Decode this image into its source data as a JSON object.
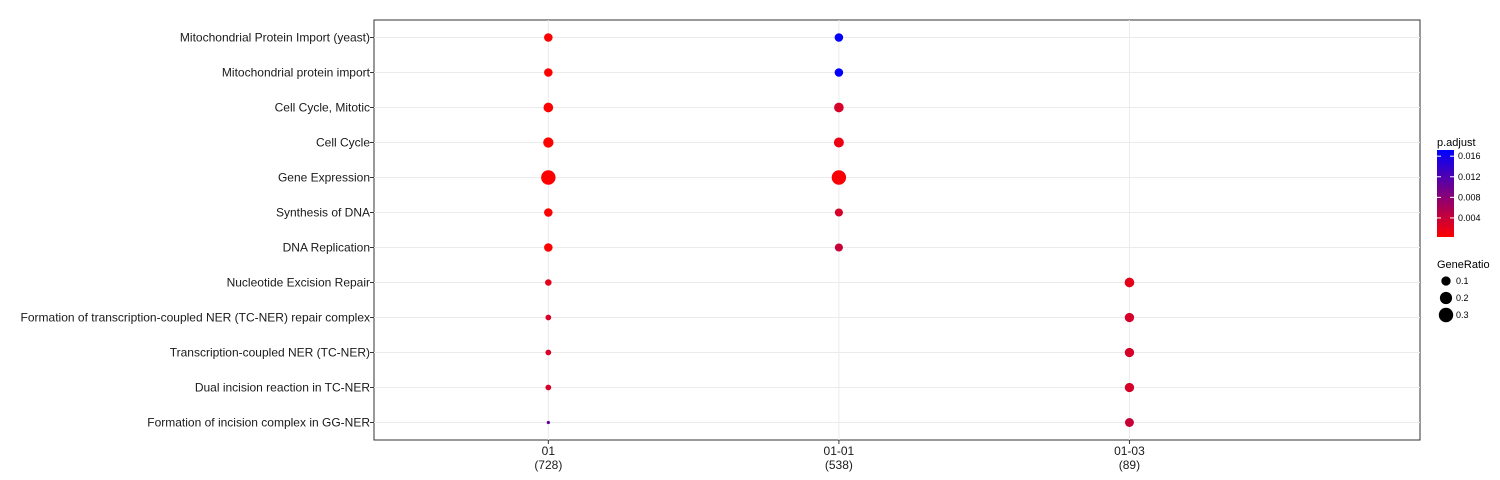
{
  "chart_data": {
    "type": "scatter",
    "title": "",
    "xlabel": "",
    "ylabel": "",
    "categories_x": [
      {
        "label": "01",
        "count": "(728)"
      },
      {
        "label": "01-01",
        "count": "(538)"
      },
      {
        "label": "01-03",
        "count": "(89)"
      }
    ],
    "categories_y": [
      "Mitochondrial Protein Import (yeast)",
      "Mitochondrial protein import",
      "Cell Cycle, Mitotic",
      "Cell Cycle",
      "Gene Expression",
      "Synthesis of DNA",
      "DNA Replication",
      "Nucleotide Excision Repair",
      "Formation of transcription-coupled NER (TC-NER) repair complex",
      "Transcription-coupled NER (TC-NER)",
      "Dual incision reaction in TC-NER",
      "Formation of incision complex in GG-NER"
    ],
    "points": [
      {
        "x": "01",
        "y": "Mitochondrial Protein Import (yeast)",
        "gene_ratio": 0.08,
        "p_adjust": 0.0003
      },
      {
        "x": "01",
        "y": "Mitochondrial protein import",
        "gene_ratio": 0.08,
        "p_adjust": 0.0003
      },
      {
        "x": "01",
        "y": "Cell Cycle, Mitotic",
        "gene_ratio": 0.11,
        "p_adjust": 0.0003
      },
      {
        "x": "01",
        "y": "Cell Cycle",
        "gene_ratio": 0.13,
        "p_adjust": 0.0003
      },
      {
        "x": "01",
        "y": "Gene Expression",
        "gene_ratio": 0.3,
        "p_adjust": 0.0003
      },
      {
        "x": "01",
        "y": "Synthesis of DNA",
        "gene_ratio": 0.08,
        "p_adjust": 0.0003
      },
      {
        "x": "01",
        "y": "DNA Replication",
        "gene_ratio": 0.08,
        "p_adjust": 0.0003
      },
      {
        "x": "01",
        "y": "Nucleotide Excision Repair",
        "gene_ratio": 0.04,
        "p_adjust": 0.002
      },
      {
        "x": "01",
        "y": "Formation of transcription-coupled NER (TC-NER) repair complex",
        "gene_ratio": 0.03,
        "p_adjust": 0.003
      },
      {
        "x": "01",
        "y": "Transcription-coupled NER (TC-NER)",
        "gene_ratio": 0.03,
        "p_adjust": 0.003
      },
      {
        "x": "01",
        "y": "Dual incision reaction in TC-NER",
        "gene_ratio": 0.03,
        "p_adjust": 0.003
      },
      {
        "x": "01",
        "y": "Formation of incision complex in GG-NER",
        "gene_ratio": 0.015,
        "p_adjust": 0.011
      },
      {
        "x": "01-01",
        "y": "Mitochondrial Protein Import (yeast)",
        "gene_ratio": 0.08,
        "p_adjust": 0.017
      },
      {
        "x": "01-01",
        "y": "Mitochondrial protein import",
        "gene_ratio": 0.08,
        "p_adjust": 0.017
      },
      {
        "x": "01-01",
        "y": "Cell Cycle, Mitotic",
        "gene_ratio": 0.11,
        "p_adjust": 0.003
      },
      {
        "x": "01-01",
        "y": "Cell Cycle",
        "gene_ratio": 0.12,
        "p_adjust": 0.0015
      },
      {
        "x": "01-01",
        "y": "Gene Expression",
        "gene_ratio": 0.3,
        "p_adjust": 0.0006
      },
      {
        "x": "01-01",
        "y": "Synthesis of DNA",
        "gene_ratio": 0.07,
        "p_adjust": 0.003
      },
      {
        "x": "01-01",
        "y": "DNA Replication",
        "gene_ratio": 0.07,
        "p_adjust": 0.004
      },
      {
        "x": "01-03",
        "y": "Nucleotide Excision Repair",
        "gene_ratio": 0.11,
        "p_adjust": 0.002
      },
      {
        "x": "01-03",
        "y": "Formation of transcription-coupled NER (TC-NER) repair complex",
        "gene_ratio": 0.1,
        "p_adjust": 0.003
      },
      {
        "x": "01-03",
        "y": "Transcription-coupled NER (TC-NER)",
        "gene_ratio": 0.1,
        "p_adjust": 0.003
      },
      {
        "x": "01-03",
        "y": "Dual incision reaction in TC-NER",
        "gene_ratio": 0.1,
        "p_adjust": 0.003
      },
      {
        "x": "01-03",
        "y": "Formation of incision complex in GG-NER",
        "gene_ratio": 0.09,
        "p_adjust": 0.004
      }
    ],
    "color_legend": {
      "title": "p.adjust",
      "ticks": [
        "0.016",
        "0.012",
        "0.008",
        "0.004"
      ],
      "tick_values": [
        0.016,
        0.012,
        0.008,
        0.004
      ],
      "range": [
        0.0003,
        0.0172
      ],
      "low_color": "#ff0000",
      "high_color": "#0000ff"
    },
    "size_legend": {
      "title": "GeneRatio",
      "entries": [
        {
          "label": "0.1",
          "value": 0.1
        },
        {
          "label": "0.2",
          "value": 0.2
        },
        {
          "label": "0.3",
          "value": 0.3
        }
      ],
      "range": [
        0.015,
        0.3
      ]
    },
    "grid": true,
    "legend_position": "right"
  }
}
